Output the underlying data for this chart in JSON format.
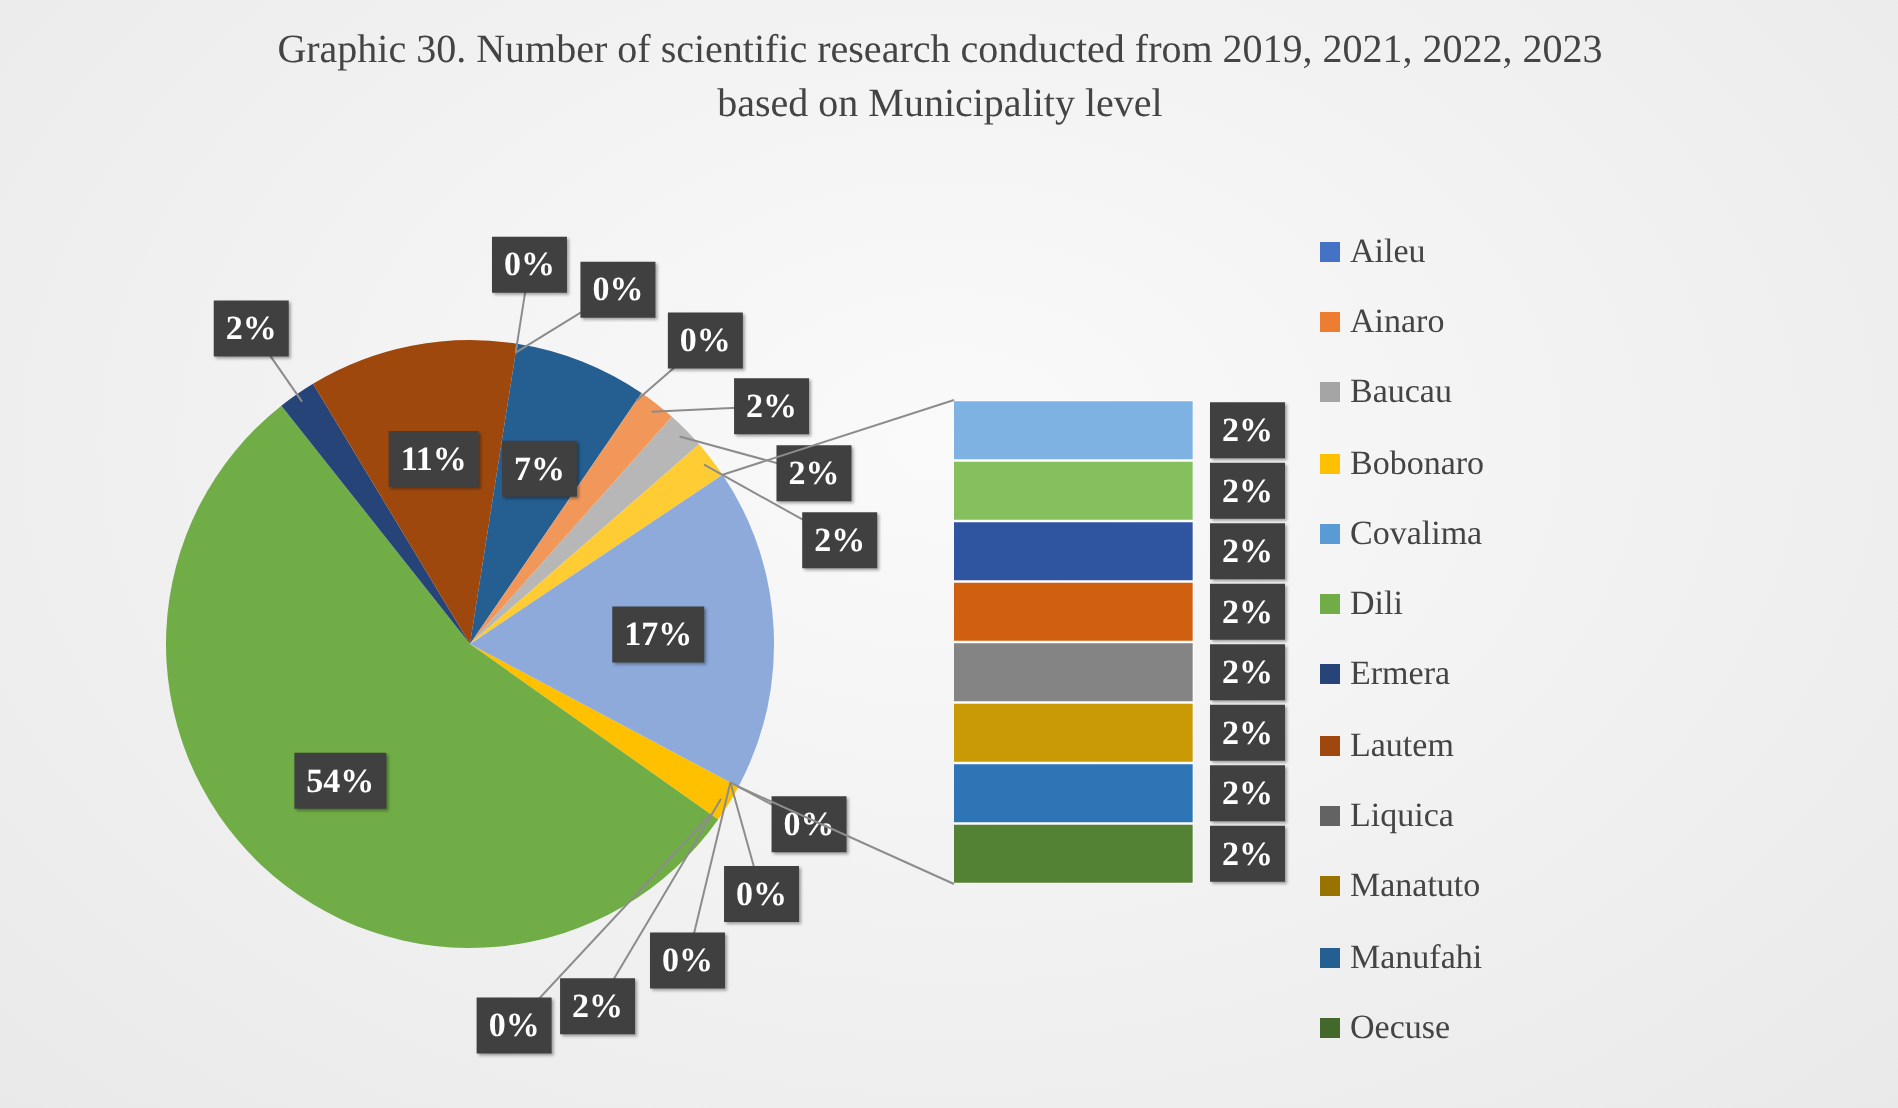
{
  "chart_data": [
    {
      "type": "pie",
      "title": "Graphic 30. Number of scientific research conducted from 2019, 2021, 2022, 2023 based on Municipality level",
      "categories": [
        "Aileu",
        "Ainaro",
        "Baucau",
        "Bobonaro",
        "Covalima",
        "Dili",
        "Ermera",
        "Lautem",
        "Liquica",
        "Manatuto",
        "Manufahi",
        "Oecuse",
        null,
        null,
        null,
        null
      ],
      "values": [
        0,
        0,
        0,
        2,
        0,
        54,
        2,
        11,
        0,
        0,
        7,
        0,
        2,
        2,
        2,
        17
      ],
      "value_labels": [
        "0%",
        "0%",
        "0%",
        "2%",
        "0%",
        "54%",
        "2%",
        "11%",
        "0%",
        "0%",
        "7%",
        "0%",
        "2%",
        "2%",
        "2%",
        "17%"
      ],
      "colors": [
        "#4472c4",
        "#ed7d31",
        "#a5a5a5",
        "#ffc000",
        "#5b9bd5",
        "#70ad47",
        "#264478",
        "#9e480e",
        "#636363",
        "#997300",
        "#255e91",
        "#43682b",
        "#f1975a",
        "#b7b7b7",
        "#ffcd33",
        "#8eaadb"
      ],
      "legend": "right"
    },
    {
      "type": "bar",
      "orientation": "horizontal",
      "categories": [
        null,
        null,
        null,
        null,
        null,
        null,
        null,
        null
      ],
      "values": [
        2,
        2,
        2,
        2,
        2,
        2,
        2,
        2
      ],
      "value_labels": [
        "2%",
        "2%",
        "2%",
        "2%",
        "2%",
        "2%",
        "2%",
        "2%"
      ],
      "colors": [
        "#7db2e2",
        "#86c05e",
        "#2f55a0",
        "#d0600f",
        "#848484",
        "#c99a06",
        "#2e75b6",
        "#548235"
      ]
    }
  ]
}
